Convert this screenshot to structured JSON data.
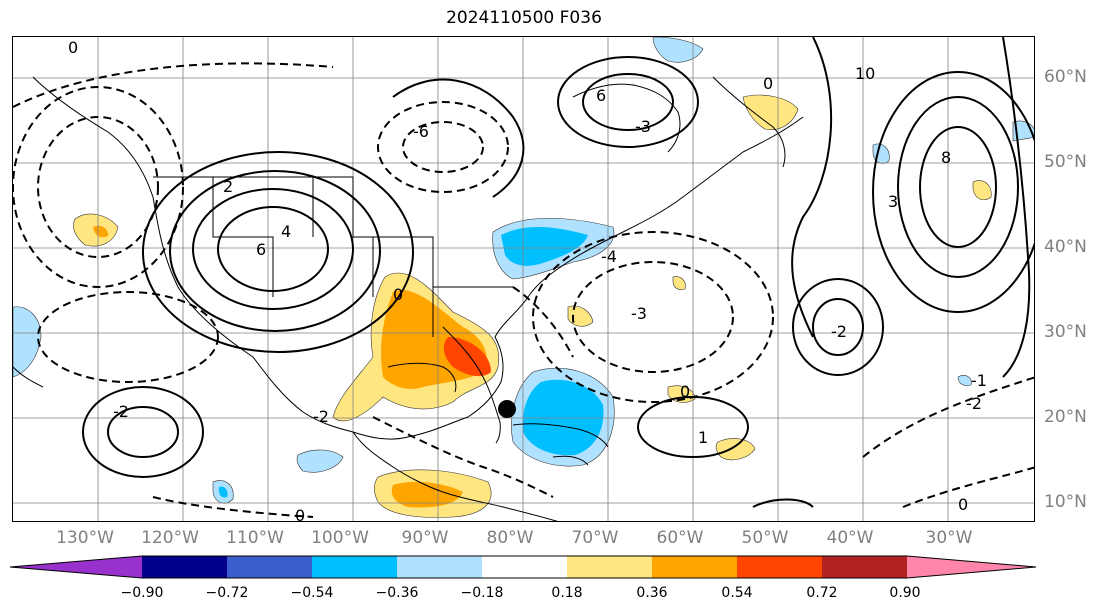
{
  "title": "2024110500 F036",
  "lon_labels": [
    "130°W",
    "120°W",
    "110°W",
    "100°W",
    "90°W",
    "80°W",
    "70°W",
    "60°W",
    "50°W",
    "40°W",
    "30°W"
  ],
  "lat_labels": [
    "60°N",
    "50°N",
    "40°N",
    "30°N",
    "20°N",
    "10°N"
  ],
  "colorbar": {
    "ticks": [
      "−0.90",
      "−0.72",
      "−0.54",
      "−0.36",
      "−0.18",
      "0.18",
      "0.36",
      "0.54",
      "0.72",
      "0.90"
    ],
    "colors": [
      "#9932cc",
      "#00008b",
      "#3a5fcd",
      "#00bfff",
      "#b0e2ff",
      "#ffffff",
      "#ffe680",
      "#ffa500",
      "#ff4500",
      "#b22222",
      "#ff85aa"
    ]
  },
  "contour_labels": [
    "0",
    "2",
    "4",
    "6",
    "8",
    "10",
    "-2",
    "-3",
    "-4",
    "-6",
    "3",
    "1",
    "-1"
  ]
}
